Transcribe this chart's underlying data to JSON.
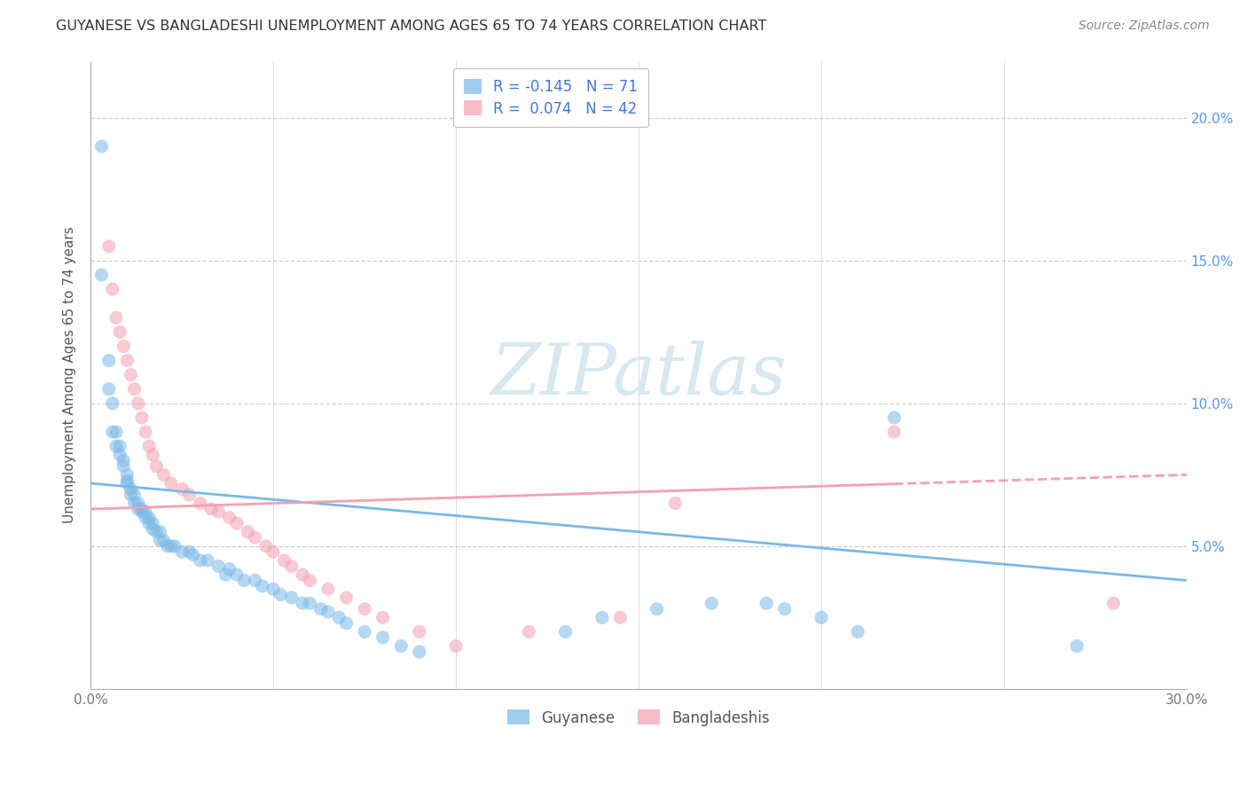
{
  "title": "GUYANESE VS BANGLADESHI UNEMPLOYMENT AMONG AGES 65 TO 74 YEARS CORRELATION CHART",
  "source": "Source: ZipAtlas.com",
  "ylabel": "Unemployment Among Ages 65 to 74 years",
  "xlim": [
    0.0,
    0.3
  ],
  "ylim": [
    0.0,
    0.22
  ],
  "xtick_vals": [
    0.0,
    0.05,
    0.1,
    0.15,
    0.2,
    0.25,
    0.3
  ],
  "xticklabels": [
    "0.0%",
    "",
    "",
    "",
    "",
    "",
    "30.0%"
  ],
  "ytick_vals": [
    0.0,
    0.05,
    0.1,
    0.15,
    0.2
  ],
  "yticklabels_left": [
    "",
    "",
    "",
    "",
    ""
  ],
  "yticklabels_right": [
    "5.0%",
    "10.0%",
    "15.0%",
    "20.0%"
  ],
  "legend_R1": "-0.145",
  "legend_N1": "71",
  "legend_R2": "0.074",
  "legend_N2": "42",
  "color_guyanese": "#7ab8e8",
  "color_bangladeshi": "#f4a0b0",
  "watermark": "ZIPatlas",
  "background_color": "#ffffff",
  "grid_color": "#d0d0d0",
  "title_color": "#333333",
  "tick_label_color_right": "#5599ee",
  "tick_label_color_bottom": "#888888",
  "source_color": "#888888",
  "trend_blue_start_y": 0.072,
  "trend_blue_end_y": 0.038,
  "trend_pink_start_y": 0.063,
  "trend_pink_end_y": 0.075,
  "trend_dash_split": 0.22,
  "guyanese_x": [
    0.003,
    0.003,
    0.005,
    0.005,
    0.006,
    0.006,
    0.007,
    0.007,
    0.008,
    0.008,
    0.009,
    0.009,
    0.01,
    0.01,
    0.01,
    0.011,
    0.011,
    0.012,
    0.012,
    0.013,
    0.013,
    0.014,
    0.014,
    0.015,
    0.015,
    0.016,
    0.016,
    0.017,
    0.017,
    0.018,
    0.019,
    0.019,
    0.02,
    0.021,
    0.022,
    0.023,
    0.025,
    0.027,
    0.028,
    0.03,
    0.032,
    0.035,
    0.037,
    0.038,
    0.04,
    0.042,
    0.045,
    0.047,
    0.05,
    0.052,
    0.055,
    0.058,
    0.06,
    0.063,
    0.065,
    0.068,
    0.07,
    0.075,
    0.08,
    0.085,
    0.09,
    0.13,
    0.14,
    0.155,
    0.17,
    0.185,
    0.19,
    0.2,
    0.21,
    0.22,
    0.27
  ],
  "guyanese_y": [
    0.19,
    0.145,
    0.115,
    0.105,
    0.1,
    0.09,
    0.09,
    0.085,
    0.085,
    0.082,
    0.08,
    0.078,
    0.075,
    0.073,
    0.072,
    0.07,
    0.068,
    0.068,
    0.065,
    0.065,
    0.063,
    0.063,
    0.062,
    0.062,
    0.06,
    0.06,
    0.058,
    0.058,
    0.056,
    0.055,
    0.055,
    0.052,
    0.052,
    0.05,
    0.05,
    0.05,
    0.048,
    0.048,
    0.047,
    0.045,
    0.045,
    0.043,
    0.04,
    0.042,
    0.04,
    0.038,
    0.038,
    0.036,
    0.035,
    0.033,
    0.032,
    0.03,
    0.03,
    0.028,
    0.027,
    0.025,
    0.023,
    0.02,
    0.018,
    0.015,
    0.013,
    0.02,
    0.025,
    0.028,
    0.03,
    0.03,
    0.028,
    0.025,
    0.02,
    0.095,
    0.015
  ],
  "bangladeshi_x": [
    0.005,
    0.006,
    0.007,
    0.008,
    0.009,
    0.01,
    0.011,
    0.012,
    0.013,
    0.014,
    0.015,
    0.016,
    0.017,
    0.018,
    0.02,
    0.022,
    0.025,
    0.027,
    0.03,
    0.033,
    0.035,
    0.038,
    0.04,
    0.043,
    0.045,
    0.048,
    0.05,
    0.053,
    0.055,
    0.058,
    0.06,
    0.065,
    0.07,
    0.075,
    0.08,
    0.09,
    0.1,
    0.12,
    0.145,
    0.16,
    0.22,
    0.28
  ],
  "bangladeshi_y": [
    0.155,
    0.14,
    0.13,
    0.125,
    0.12,
    0.115,
    0.11,
    0.105,
    0.1,
    0.095,
    0.09,
    0.085,
    0.082,
    0.078,
    0.075,
    0.072,
    0.07,
    0.068,
    0.065,
    0.063,
    0.062,
    0.06,
    0.058,
    0.055,
    0.053,
    0.05,
    0.048,
    0.045,
    0.043,
    0.04,
    0.038,
    0.035,
    0.032,
    0.028,
    0.025,
    0.02,
    0.015,
    0.02,
    0.025,
    0.065,
    0.09,
    0.03
  ]
}
